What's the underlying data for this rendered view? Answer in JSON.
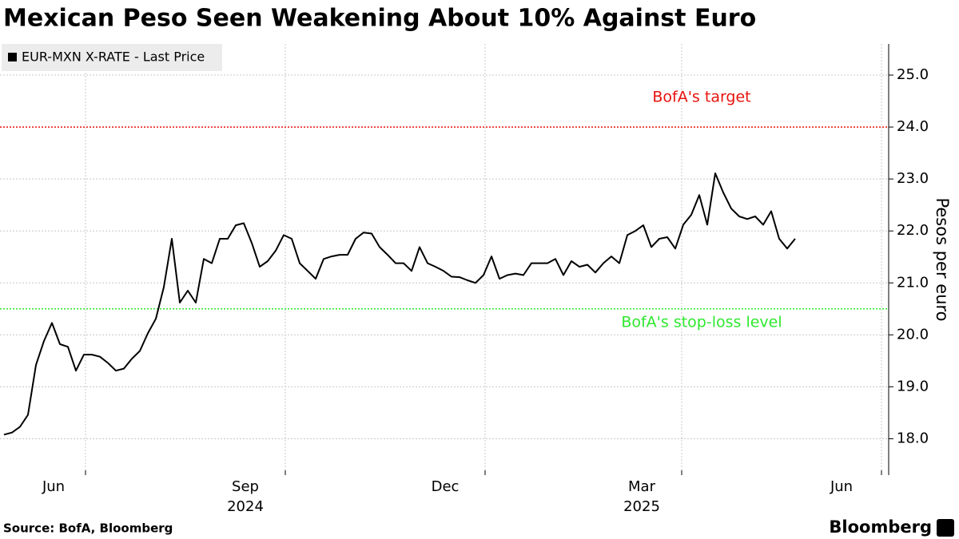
{
  "chart_data": {
    "type": "line",
    "title": "Mexican Peso Seen Weakening About 10% Against Euro",
    "y_axis_label": "Pesos per euro",
    "source": "Source: BofA, Bloomberg",
    "brand": "Bloomberg",
    "categories": [
      null,
      null,
      null,
      null,
      null,
      null,
      null,
      null,
      null,
      null,
      null,
      null,
      null,
      null,
      null,
      null,
      null,
      null,
      null,
      null,
      null,
      null,
      null,
      null,
      null,
      null,
      null,
      null,
      null,
      null,
      null,
      null,
      null,
      null,
      null,
      null,
      null,
      null,
      null,
      null,
      null,
      null,
      null,
      null,
      null,
      null,
      null,
      null,
      null,
      null,
      null,
      null,
      null,
      null,
      null,
      null,
      null,
      null,
      null,
      null,
      null,
      null,
      null,
      null,
      null,
      null,
      null,
      null,
      null,
      null,
      null,
      null,
      null,
      null,
      null,
      null,
      null,
      null,
      null,
      null,
      null,
      null,
      null,
      null,
      null,
      null,
      null,
      null,
      null,
      null,
      null,
      null,
      null,
      null,
      null,
      null,
      null,
      null,
      null,
      null
    ],
    "series": [
      {
        "name": "EUR-MXN X-RATE - Last Price",
        "color": "#000000",
        "values": [
          18.08,
          18.12,
          18.23,
          18.46,
          19.42,
          19.88,
          20.23,
          19.82,
          19.77,
          19.31,
          19.62,
          19.62,
          19.58,
          19.46,
          19.31,
          19.35,
          19.54,
          19.69,
          20.03,
          20.31,
          20.92,
          21.85,
          20.62,
          20.85,
          20.62,
          21.46,
          21.38,
          21.85,
          21.85,
          22.11,
          22.15,
          21.77,
          21.31,
          21.42,
          21.62,
          21.92,
          21.85,
          21.38,
          21.23,
          21.08,
          21.46,
          21.51,
          21.54,
          21.54,
          21.85,
          21.97,
          21.95,
          21.69,
          21.54,
          21.38,
          21.38,
          21.23,
          21.69,
          21.38,
          21.31,
          21.23,
          21.12,
          21.11,
          21.05,
          21.0,
          21.15,
          21.51,
          21.08,
          21.15,
          21.18,
          21.15,
          21.38,
          21.38,
          21.38,
          21.46,
          21.15,
          21.42,
          21.31,
          21.35,
          21.2,
          21.38,
          21.51,
          21.38,
          21.92,
          22.0,
          22.11,
          21.69,
          21.85,
          21.88,
          21.66,
          22.12,
          22.31,
          22.69,
          22.12,
          23.11,
          22.74,
          22.43,
          22.28,
          22.23,
          22.28,
          22.12,
          22.38,
          21.85,
          21.66,
          21.85
        ]
      }
    ],
    "xlim": [
      -0.5,
      110.7
    ],
    "xticks": [
      {
        "value": 10.2,
        "label": "Jun"
      },
      {
        "value": 35.2,
        "label": "Sep"
      },
      {
        "value": 60.2,
        "label": "Dec"
      },
      {
        "value": 84.8,
        "label": "Mar"
      },
      {
        "value": 109.8,
        "label": "Jun"
      }
    ],
    "year_labels": [
      {
        "value": 35.2,
        "label": "2024"
      },
      {
        "value": 84.8,
        "label": "2025"
      }
    ],
    "ylim": [
      17.3,
      25.6
    ],
    "yticks": [
      {
        "value": 18,
        "label": "18.0"
      },
      {
        "value": 19,
        "label": "19.0"
      },
      {
        "value": 20,
        "label": "20.0"
      },
      {
        "value": 21,
        "label": "21.0"
      },
      {
        "value": 22,
        "label": "22.0"
      },
      {
        "value": 23,
        "label": "23.0"
      },
      {
        "value": 24,
        "label": "24.0"
      },
      {
        "value": 25,
        "label": "25.0"
      }
    ],
    "reference_lines": [
      {
        "value": 24,
        "label": "BofA's target",
        "color": "#e8120c"
      },
      {
        "value": 20.5,
        "label": "BofA's stop-loss level",
        "color": "#2ee82e"
      }
    ],
    "grid": true,
    "legend": "upper left"
  }
}
